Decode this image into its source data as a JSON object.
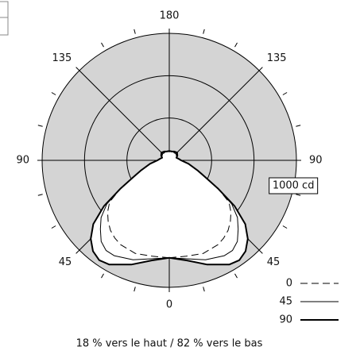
{
  "chart_data": {
    "type": "polar",
    "angles": [
      0,
      10,
      20,
      30,
      35,
      40,
      45,
      50,
      55,
      60,
      65,
      70,
      80,
      90,
      100,
      110,
      120,
      135,
      150,
      165,
      180
    ],
    "series": [
      {
        "name": "0",
        "color": "#000000",
        "dash": true,
        "width": 1,
        "values": [
          1150,
          1150,
          1170,
          1150,
          1120,
          1080,
          1020,
          950,
          860,
          660,
          470,
          360,
          230,
          140,
          110,
          90,
          100,
          110,
          105,
          100,
          100
        ]
      },
      {
        "name": "45",
        "color": "#000000",
        "dash": false,
        "width": 1,
        "values": [
          1150,
          1180,
          1250,
          1300,
          1300,
          1250,
          1150,
          1050,
          900,
          660,
          470,
          360,
          230,
          140,
          110,
          90,
          105,
          120,
          115,
          105,
          105
        ]
      },
      {
        "name": "90",
        "color": "#000000",
        "dash": false,
        "width": 2,
        "values": [
          1150,
          1200,
          1310,
          1420,
          1440,
          1400,
          1310,
          1170,
          940,
          660,
          470,
          360,
          230,
          140,
          110,
          90,
          110,
          130,
          120,
          110,
          110
        ]
      }
    ],
    "rlim": [
      0,
      1500
    ],
    "rgrid": [
      500,
      1000,
      1500
    ],
    "rlabel": {
      "value": 1000,
      "label": "1000 cd"
    },
    "angle_ticks": [
      0,
      45,
      90,
      135,
      180
    ],
    "minor_ticks": [
      15,
      30,
      60,
      75,
      105,
      120,
      150,
      165
    ],
    "caption": "18 % vers le haut / 82 % vers le bas",
    "fill_color": "#d4d4d4"
  }
}
